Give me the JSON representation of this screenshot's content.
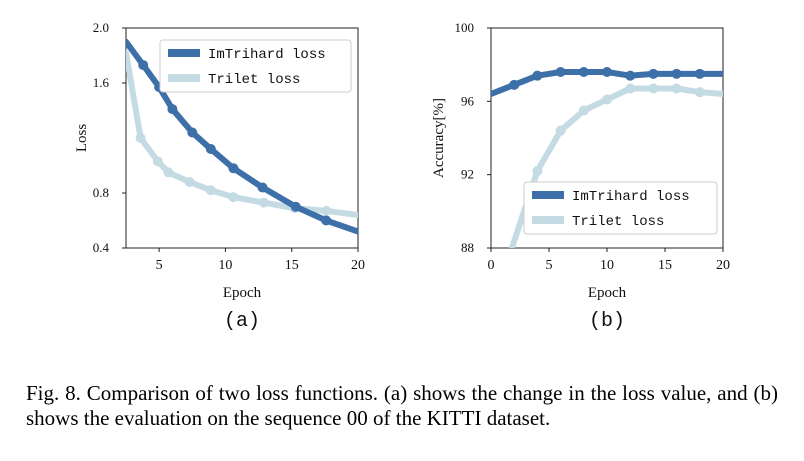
{
  "caption": "Fig. 8.  Comparison of two loss functions. (a) shows the change in the loss value, and (b) shows the evaluation on the sequence 00 of the KITTI dataset.",
  "colors": {
    "imtrihard": "#3d6fa8",
    "trilet": "#c4dbe4"
  },
  "chart_data": [
    {
      "type": "line",
      "panel_label": "(a)",
      "xlabel": "Epoch",
      "ylabel": "Loss",
      "xlim": [
        2.5,
        20
      ],
      "ylim": [
        0.4,
        2.0
      ],
      "xticks": [
        5,
        10,
        15,
        20
      ],
      "yticks": [
        0.4,
        0.8,
        1.6,
        2.0
      ],
      "ytick_labels": [
        "0.4",
        "0.8",
        "1.6",
        "2.0"
      ],
      "grid": false,
      "legend_position": "top-right",
      "series": [
        {
          "name": "ImTrihard loss",
          "x": [
            2.5,
            3.8,
            5.0,
            6.0,
            7.5,
            8.9,
            10.6,
            12.8,
            15.3,
            17.6,
            20
          ],
          "y": [
            1.9,
            1.73,
            1.57,
            1.41,
            1.24,
            1.12,
            0.98,
            0.84,
            0.7,
            0.6,
            0.52
          ],
          "marker_x": [
            3.8,
            5.0,
            6.0,
            7.5,
            8.9,
            10.6,
            12.8,
            15.3,
            17.6
          ]
        },
        {
          "name": "Trilet loss",
          "x": [
            2.5,
            3.6,
            4.9,
            5.7,
            7.3,
            8.9,
            10.6,
            12.9,
            15.2,
            17.6,
            20
          ],
          "y": [
            1.82,
            1.2,
            1.03,
            0.95,
            0.88,
            0.82,
            0.77,
            0.73,
            0.69,
            0.67,
            0.64
          ],
          "marker_x": [
            3.6,
            4.9,
            5.7,
            7.3,
            8.9,
            10.6,
            12.9,
            15.2,
            17.6
          ]
        }
      ]
    },
    {
      "type": "line",
      "panel_label": "(b)",
      "xlabel": "Epoch",
      "ylabel": "Accuracy[%]",
      "xlim": [
        0,
        20
      ],
      "ylim": [
        88,
        100
      ],
      "xticks": [
        0,
        5,
        10,
        15,
        20
      ],
      "yticks": [
        88,
        92,
        96,
        100
      ],
      "grid": false,
      "legend_position": "bottom-right",
      "series": [
        {
          "name": "ImTrihard loss",
          "x": [
            0,
            2,
            4,
            6,
            8,
            10,
            12,
            14,
            16,
            18,
            20
          ],
          "y": [
            96.4,
            96.9,
            97.4,
            97.6,
            97.6,
            97.6,
            97.4,
            97.5,
            97.5,
            97.5,
            97.5
          ],
          "marker_x": [
            2,
            4,
            6,
            8,
            10,
            12,
            14,
            16,
            18
          ]
        },
        {
          "name": "Trilet loss",
          "x": [
            1.8,
            4,
            6,
            8,
            10,
            12,
            14,
            16,
            18,
            20
          ],
          "y": [
            88,
            92.2,
            94.4,
            95.5,
            96.1,
            96.7,
            96.7,
            96.7,
            96.5,
            96.4
          ],
          "marker_x": [
            4,
            6,
            8,
            10,
            12,
            14,
            16,
            18
          ]
        }
      ]
    }
  ]
}
